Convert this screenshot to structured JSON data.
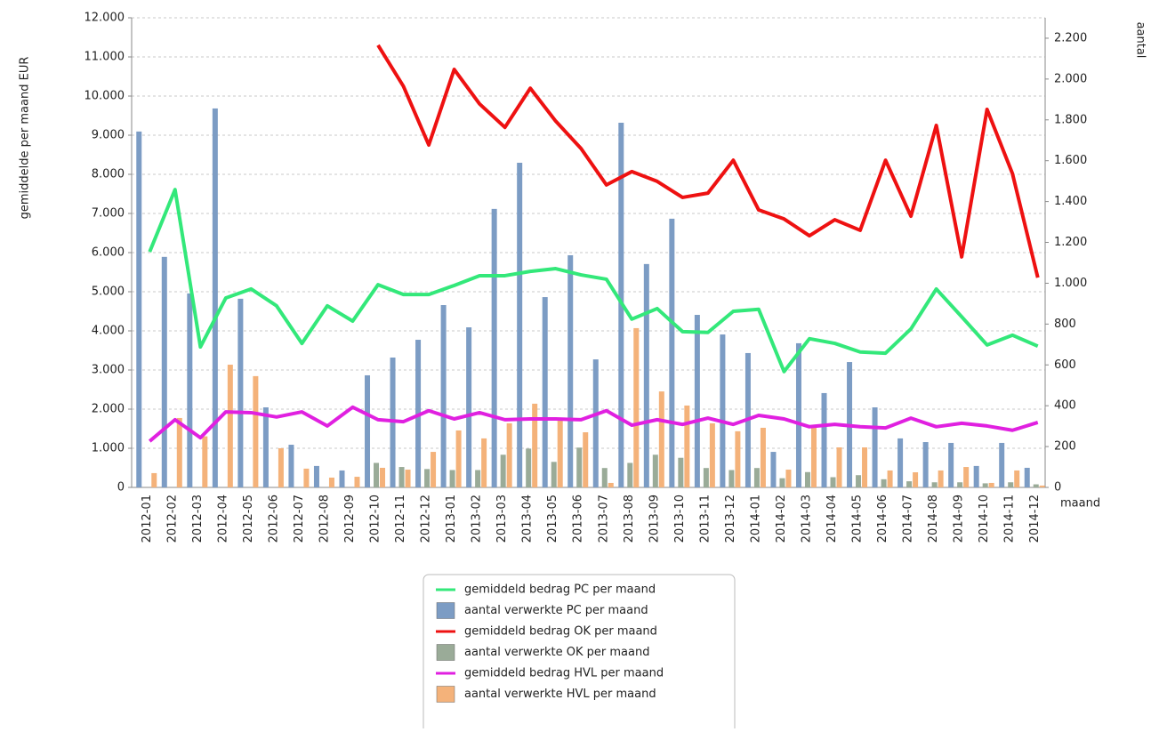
{
  "chart_data": {
    "type": "bar-line",
    "y_label": "gemiddelde per maand EUR",
    "y2_label": "aantal",
    "x_label": "maand",
    "categories": [
      "2012-01",
      "2012-02",
      "2012-03",
      "2012-04",
      "2012-05",
      "2012-06",
      "2012-07",
      "2012-08",
      "2012-09",
      "2012-10",
      "2012-11",
      "2012-12",
      "2013-01",
      "2013-02",
      "2013-03",
      "2013-04",
      "2013-05",
      "2013-06",
      "2013-07",
      "2013-08",
      "2013-09",
      "2013-10",
      "2013-11",
      "2013-12",
      "2014-01",
      "2014-02",
      "2014-03",
      "2014-04",
      "2014-05",
      "2014-06",
      "2014-07",
      "2014-08",
      "2014-09",
      "2014-10",
      "2014-11",
      "2014-12"
    ],
    "ylim": [
      0,
      12000
    ],
    "yticks": [
      0,
      {
        "value": 1000,
        "label": "1.000"
      },
      {
        "value": 2000,
        "label": "2.000"
      },
      {
        "value": 3000,
        "label": "3.000"
      },
      {
        "value": 4000,
        "label": "4.000"
      },
      {
        "value": 5000,
        "label": "5.000"
      },
      {
        "value": 6000,
        "label": "6.000"
      },
      {
        "value": 7000,
        "label": "7.000"
      },
      {
        "value": 8000,
        "label": "8.000"
      },
      {
        "value": 9000,
        "label": "9.000"
      },
      {
        "value": 10000,
        "label": "10.000"
      },
      {
        "value": 11000,
        "label": "11.000"
      },
      {
        "value": 12000,
        "label": "12.000"
      }
    ],
    "y2lim": [
      0,
      2300
    ],
    "y2ticks": [
      0,
      200,
      400,
      600,
      800,
      {
        "value": 1000,
        "label": "1.000"
      },
      {
        "value": 1200,
        "label": "1.200"
      },
      {
        "value": 1400,
        "label": "1.400"
      },
      {
        "value": 1600,
        "label": "1.600"
      },
      {
        "value": 1800,
        "label": "1.800"
      },
      {
        "value": 2000,
        "label": "2.000"
      },
      {
        "value": 2200,
        "label": "2.200"
      }
    ],
    "grid": true,
    "series": [
      {
        "name": "gemiddeld bedrag PC per maand",
        "type": "line",
        "color": "#33e87a",
        "values": [
          6020,
          7610,
          3590,
          4840,
          5070,
          4640,
          3680,
          4640,
          4250,
          5180,
          4930,
          4930,
          5160,
          5410,
          5410,
          5520,
          5590,
          5430,
          5320,
          4300,
          4570,
          3980,
          3960,
          4500,
          4550,
          2960,
          3800,
          3680,
          3460,
          3430,
          4050,
          5070,
          4360,
          3640,
          3890,
          3610
        ]
      },
      {
        "name": "aantal verwerkte PC per maand",
        "type": "bar",
        "axis": "y2",
        "color": "#7c9cc4",
        "values": [
          1743,
          1129,
          950,
          1856,
          924,
          392,
          209,
          105,
          83,
          549,
          636,
          723,
          893,
          784,
          1364,
          1590,
          932,
          1137,
          627,
          1786,
          1094,
          1316,
          845,
          749,
          658,
          174,
          706,
          462,
          614,
          392,
          240,
          222,
          218,
          105,
          218,
          96
        ]
      },
      {
        "name": "gemiddeld bedrag OK per maand",
        "type": "line",
        "color": "#ee1111",
        "values": [
          null,
          null,
          null,
          null,
          null,
          null,
          null,
          null,
          null,
          11300,
          10250,
          8750,
          10680,
          9800,
          9200,
          10200,
          9360,
          8660,
          7730,
          8070,
          7820,
          7410,
          7520,
          8360,
          7090,
          6860,
          6430,
          6840,
          6570,
          8360,
          6930,
          9250,
          5890,
          9660,
          8020,
          5360
        ]
      },
      {
        "name": "aantal verwerkte OK per maand",
        "type": "bar",
        "axis": "y2",
        "color": "#9aab98",
        "values": [
          null,
          null,
          null,
          null,
          null,
          null,
          null,
          null,
          null,
          120,
          100,
          90,
          85,
          85,
          160,
          190,
          125,
          195,
          95,
          120,
          160,
          145,
          95,
          85,
          95,
          45,
          75,
          50,
          60,
          40,
          30,
          25,
          25,
          20,
          25,
          15
        ]
      },
      {
        "name": "gemiddeld bedrag HVL per maand",
        "type": "line",
        "color": "#e020e0",
        "values": [
          1180,
          1730,
          1270,
          1930,
          1910,
          1800,
          1930,
          1570,
          2050,
          1730,
          1680,
          1960,
          1750,
          1910,
          1730,
          1750,
          1750,
          1730,
          1960,
          1590,
          1730,
          1610,
          1770,
          1610,
          1840,
          1750,
          1550,
          1610,
          1550,
          1520,
          1770,
          1550,
          1640,
          1570,
          1460,
          1660
        ]
      },
      {
        "name": "aantal verwerkte HVL per maand",
        "type": "bar",
        "axis": "y2",
        "color": "#f4b27a",
        "values": [
          70,
          340,
          250,
          601,
          545,
          192,
          92,
          48,
          52,
          96,
          87,
          174,
          279,
          240,
          314,
          410,
          340,
          270,
          22,
          780,
          470,
          401,
          314,
          275,
          292,
          87,
          296,
          196,
          196,
          83,
          74,
          83,
          100,
          22,
          83,
          9
        ]
      }
    ]
  }
}
